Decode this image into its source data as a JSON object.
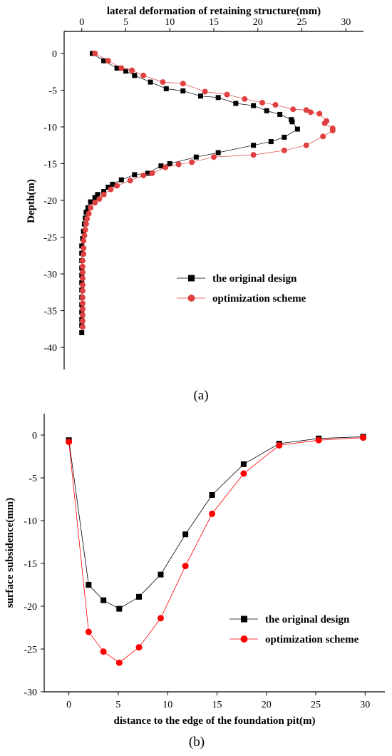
{
  "chart_data": [
    {
      "type": "line",
      "panel_label": "(a)",
      "xlabel": "lateral deformation of retaining structure(mm)",
      "ylabel": "Depth(m)",
      "xlim": [
        -2,
        32
      ],
      "ylim": [
        -43,
        3
      ],
      "xticks": [
        0,
        5,
        10,
        15,
        20,
        25,
        30
      ],
      "yticks": [
        0,
        -5,
        -10,
        -15,
        -20,
        -25,
        -30,
        -35,
        -40
      ],
      "x_axis_position": "top",
      "legend_position": "lower-right",
      "grid": false,
      "series": [
        {
          "name": "the original design",
          "color": "#000000",
          "marker": "square",
          "points": [
            [
              1.2,
              0
            ],
            [
              2.5,
              -1
            ],
            [
              4,
              -2
            ],
            [
              5,
              -2.4
            ],
            [
              6,
              -3
            ],
            [
              7.8,
              -3.9
            ],
            [
              9.6,
              -4.8
            ],
            [
              11.5,
              -5.1
            ],
            [
              13.5,
              -5.8
            ],
            [
              15.5,
              -6
            ],
            [
              17.5,
              -6.8
            ],
            [
              19.5,
              -7.1
            ],
            [
              21,
              -7.8
            ],
            [
              22.5,
              -8.3
            ],
            [
              23.8,
              -9
            ],
            [
              23.9,
              -9.3
            ],
            [
              24.5,
              -10.3
            ],
            [
              23,
              -11.4
            ],
            [
              21.5,
              -12
            ],
            [
              19.5,
              -12.5
            ],
            [
              15.5,
              -13.5
            ],
            [
              13,
              -14.1
            ],
            [
              10,
              -15
            ],
            [
              9,
              -15.3
            ],
            [
              7.5,
              -16.3
            ],
            [
              6,
              -16.5
            ],
            [
              4.5,
              -17.2
            ],
            [
              3.5,
              -17.8
            ],
            [
              3,
              -18.2
            ],
            [
              2.5,
              -18.8
            ],
            [
              1.8,
              -19.2
            ],
            [
              1.5,
              -19.6
            ],
            [
              1,
              -20.2
            ],
            [
              0.7,
              -21
            ],
            [
              0.5,
              -21.6
            ],
            [
              0.4,
              -22.4
            ],
            [
              0.3,
              -23.2
            ],
            [
              0.2,
              -24.2
            ],
            [
              0.1,
              -25.2
            ],
            [
              0,
              -26.2
            ],
            [
              0,
              -27.2
            ],
            [
              0,
              -28.2
            ],
            [
              0,
              -29.2
            ],
            [
              0,
              -30.2
            ],
            [
              0,
              -31.2
            ],
            [
              0,
              -32.2
            ],
            [
              0,
              -33.2
            ],
            [
              0,
              -34.2
            ],
            [
              0,
              -35.2
            ],
            [
              0,
              -36.2
            ],
            [
              0,
              -37
            ],
            [
              0,
              -38
            ]
          ]
        },
        {
          "name": "optimization scheme",
          "color": "#e04040",
          "marker": "circle",
          "points": [
            [
              1.5,
              0
            ],
            [
              3,
              -1
            ],
            [
              4.5,
              -2
            ],
            [
              5.7,
              -2.3
            ],
            [
              7,
              -3
            ],
            [
              9.2,
              -3.9
            ],
            [
              11.5,
              -4.1
            ],
            [
              14,
              -5.2
            ],
            [
              16.5,
              -5.6
            ],
            [
              18.5,
              -6.2
            ],
            [
              20.5,
              -6.7
            ],
            [
              22,
              -7
            ],
            [
              24,
              -7.6
            ],
            [
              25.5,
              -7.7
            ],
            [
              26,
              -8
            ],
            [
              27,
              -8.2
            ],
            [
              27.8,
              -9.2
            ],
            [
              27.6,
              -9.5
            ],
            [
              28.5,
              -10.2
            ],
            [
              28.5,
              -10.5
            ],
            [
              27.4,
              -11.3
            ],
            [
              25.5,
              -12.5
            ],
            [
              23,
              -13.2
            ],
            [
              19.5,
              -13.8
            ],
            [
              15,
              -14.1
            ],
            [
              12.5,
              -14.8
            ],
            [
              11,
              -15.1
            ],
            [
              9.5,
              -15.5
            ],
            [
              8,
              -16.3
            ],
            [
              7,
              -16.6
            ],
            [
              5.5,
              -17.3
            ],
            [
              4,
              -18
            ],
            [
              3.3,
              -18.5
            ],
            [
              2.5,
              -19.2
            ],
            [
              2,
              -19.8
            ],
            [
              1.5,
              -20.3
            ],
            [
              1,
              -21
            ],
            [
              0.8,
              -21.8
            ],
            [
              0.6,
              -22.5
            ],
            [
              0.5,
              -23.2
            ],
            [
              0.4,
              -24
            ],
            [
              0.3,
              -24.8
            ],
            [
              0.2,
              -25.5
            ],
            [
              0.2,
              -26.5
            ],
            [
              0.2,
              -27.3
            ],
            [
              0.1,
              -28.2
            ],
            [
              0.1,
              -29
            ],
            [
              0.1,
              -29.8
            ],
            [
              0.1,
              -30.6
            ],
            [
              0.1,
              -31.5
            ],
            [
              0.1,
              -32.3
            ],
            [
              0.1,
              -33.2
            ],
            [
              0.1,
              -34
            ],
            [
              0.1,
              -34.8
            ],
            [
              0.1,
              -35.6
            ],
            [
              0.1,
              -36.4
            ],
            [
              0.1,
              -37.2
            ]
          ]
        }
      ]
    },
    {
      "type": "line",
      "panel_label": "(b)",
      "xlabel": "distance to the edge of the foundation pit(m)",
      "ylabel": "surface subsidence(mm)",
      "xlim": [
        -2.5,
        32
      ],
      "ylim": [
        -30,
        2.5
      ],
      "xticks": [
        0,
        5,
        10,
        15,
        20,
        25,
        30
      ],
      "yticks": [
        0,
        -5,
        -10,
        -15,
        -20,
        -25,
        -30
      ],
      "x_axis_position": "bottom",
      "legend_position": "lower-right",
      "grid": false,
      "series": [
        {
          "name": "the original design",
          "color": "#000000",
          "marker": "square",
          "points": [
            [
              0,
              -0.6
            ],
            [
              2,
              -17.5
            ],
            [
              3.5,
              -19.3
            ],
            [
              5.1,
              -20.3
            ],
            [
              7.1,
              -18.9
            ],
            [
              9.3,
              -16.3
            ],
            [
              11.8,
              -11.6
            ],
            [
              14.5,
              -7
            ],
            [
              17.7,
              -3.4
            ],
            [
              21.3,
              -1
            ],
            [
              25.3,
              -0.4
            ],
            [
              29.8,
              -0.2
            ]
          ]
        },
        {
          "name": "optimization scheme",
          "color": "#ff0000",
          "marker": "circle",
          "points": [
            [
              0,
              -0.8
            ],
            [
              2,
              -23
            ],
            [
              3.5,
              -25.3
            ],
            [
              5.1,
              -26.6
            ],
            [
              7.1,
              -24.8
            ],
            [
              9.3,
              -21.4
            ],
            [
              11.8,
              -15.3
            ],
            [
              14.5,
              -9.2
            ],
            [
              17.7,
              -4.5
            ],
            [
              21.3,
              -1.2
            ],
            [
              25.3,
              -0.6
            ],
            [
              29.8,
              -0.3
            ]
          ]
        }
      ]
    }
  ]
}
